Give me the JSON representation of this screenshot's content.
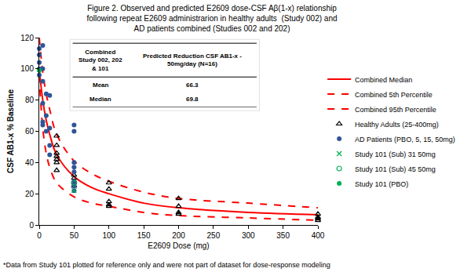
{
  "chart_data": {
    "type": "scatter",
    "title": "Figure 2. Observed and predicted E2609 dose-CSF Aβ(1-x) relationship\nfollowing repeat E2609 administrarion in healthy adults  (Study 002) and\nAD patients combined (Studies 002 and 202)",
    "x_label": "E2609 Dose (mg)",
    "y_label": "CSF AB1-x % Baseline",
    "xlim": [
      0,
      400
    ],
    "xticks": [
      0,
      50,
      100,
      150,
      200,
      250,
      300,
      350,
      400
    ],
    "ylim": [
      0,
      120
    ],
    "yticks": [
      0,
      20,
      40,
      60,
      80,
      100,
      120
    ],
    "grid": false,
    "legend": "right",
    "series": [
      {
        "name": "Combined Median",
        "type": "line",
        "line_style": "solid",
        "color": "#ff0000",
        "x": [
          0,
          5,
          10,
          15,
          25,
          50,
          75,
          100,
          150,
          200,
          300,
          400
        ],
        "values": [
          100,
          80,
          67,
          58,
          45,
          31,
          24,
          20,
          14,
          11,
          8,
          6.5
        ]
      },
      {
        "name": "Combined 5th Percentile",
        "type": "line",
        "line_style": "dash",
        "color": "#ff0000",
        "x": [
          0,
          5,
          10,
          15,
          25,
          50,
          75,
          100,
          150,
          200,
          300,
          400
        ],
        "values": [
          96,
          62,
          46,
          37,
          27,
          18,
          14,
          12,
          8,
          6,
          4.5,
          3
        ]
      },
      {
        "name": "Combined 95th Percentile",
        "type": "line",
        "line_style": "dash",
        "color": "#ff0000",
        "x": [
          0,
          5,
          10,
          15,
          25,
          50,
          75,
          100,
          150,
          200,
          300,
          400
        ],
        "values": [
          120,
          98,
          84,
          74,
          58,
          41,
          33,
          28,
          21,
          17,
          14,
          11
        ]
      },
      {
        "name": "Healthy Adults (25-400mg)",
        "type": "scatter",
        "marker": "triangle-open",
        "color": "#000000",
        "x": [
          25,
          25,
          25,
          25,
          25,
          25,
          25,
          50,
          50,
          50,
          50,
          50,
          100,
          100,
          100,
          100,
          100,
          200,
          200,
          200,
          200,
          400,
          400,
          400,
          400
        ],
        "values": [
          57,
          51,
          46,
          44,
          42,
          40,
          35,
          32,
          30,
          28,
          27,
          25,
          27,
          23,
          15,
          13,
          12,
          17,
          12,
          8,
          7,
          7,
          5,
          4,
          3
        ]
      },
      {
        "name": "AD Patients (PBO, 5, 15, 50mg)",
        "type": "scatter",
        "marker": "circle",
        "color": "#2e5597",
        "x": [
          0,
          0,
          0,
          0,
          0,
          5,
          5,
          5,
          5,
          5,
          5,
          10,
          10,
          10,
          15,
          15,
          15,
          15,
          50,
          50,
          50,
          50,
          50,
          50,
          50,
          50,
          50
        ],
        "values": [
          113,
          109,
          104,
          100,
          96,
          115,
          100,
          92,
          78,
          66,
          64,
          84,
          70,
          60,
          83,
          62,
          51,
          45,
          64,
          60,
          40,
          37,
          34,
          28,
          26,
          25,
          22
        ]
      },
      {
        "name": "Study 101 (Sub) 31 50mg",
        "type": "scatter",
        "marker": "x",
        "color": "#00b050",
        "x": [
          50
        ],
        "values": [
          22
        ]
      },
      {
        "name": "Study 101 (Sub) 45 50mg",
        "type": "scatter",
        "marker": "circle-open",
        "color": "#00b050",
        "x": [
          50
        ],
        "values": [
          27
        ]
      },
      {
        "name": "Study 101 (PBO)",
        "type": "scatter",
        "marker": "circle",
        "color": "#00b050",
        "x": [
          0
        ],
        "values": [
          99
        ]
      }
    ],
    "inset_table": {
      "header": [
        [
          "Combined",
          "Study 002, 202",
          "& 101"
        ],
        [
          "Predicted Reduction CSF AB1-x -",
          "50mg/day (N=16)"
        ]
      ],
      "rows": [
        [
          "Mean",
          66.3
        ],
        [
          "Median",
          69.8
        ]
      ]
    },
    "footnote": "*Data from Study 101 plotted for reference only and were not part of dataset for dose-response modeling"
  }
}
